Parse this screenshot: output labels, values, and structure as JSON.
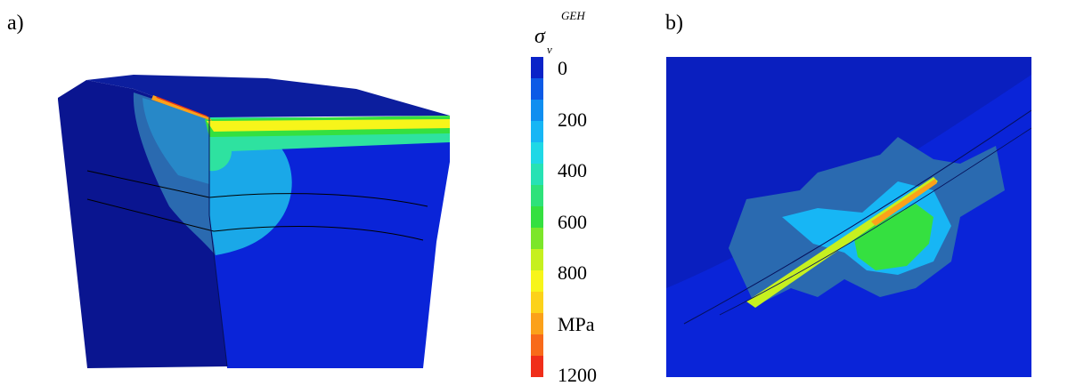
{
  "panels": {
    "a_label": "a)",
    "b_label": "b)"
  },
  "legend": {
    "symbol": "σ",
    "subscript": "v",
    "superscript": "GEH",
    "ticks": [
      "0",
      "200",
      "400",
      "600",
      "800",
      "MPa",
      "1200"
    ],
    "colors": [
      "#0a23c8",
      "#0c5ae6",
      "#0f8ef0",
      "#17b6f5",
      "#1fd8e6",
      "#27e2b4",
      "#2ee27a",
      "#35e040",
      "#7ce62a",
      "#c6f01f",
      "#f7f51a",
      "#fcd21a",
      "#fba11a",
      "#f86a1a",
      "#f02e1a"
    ]
  },
  "colors": {
    "background_blue": "#0a1fbf",
    "dark_blue": "#0a1590",
    "mid_blue": "#0b29d8",
    "steel_blue": "#2a6ab0",
    "cyan": "#1aa8e8"
  }
}
